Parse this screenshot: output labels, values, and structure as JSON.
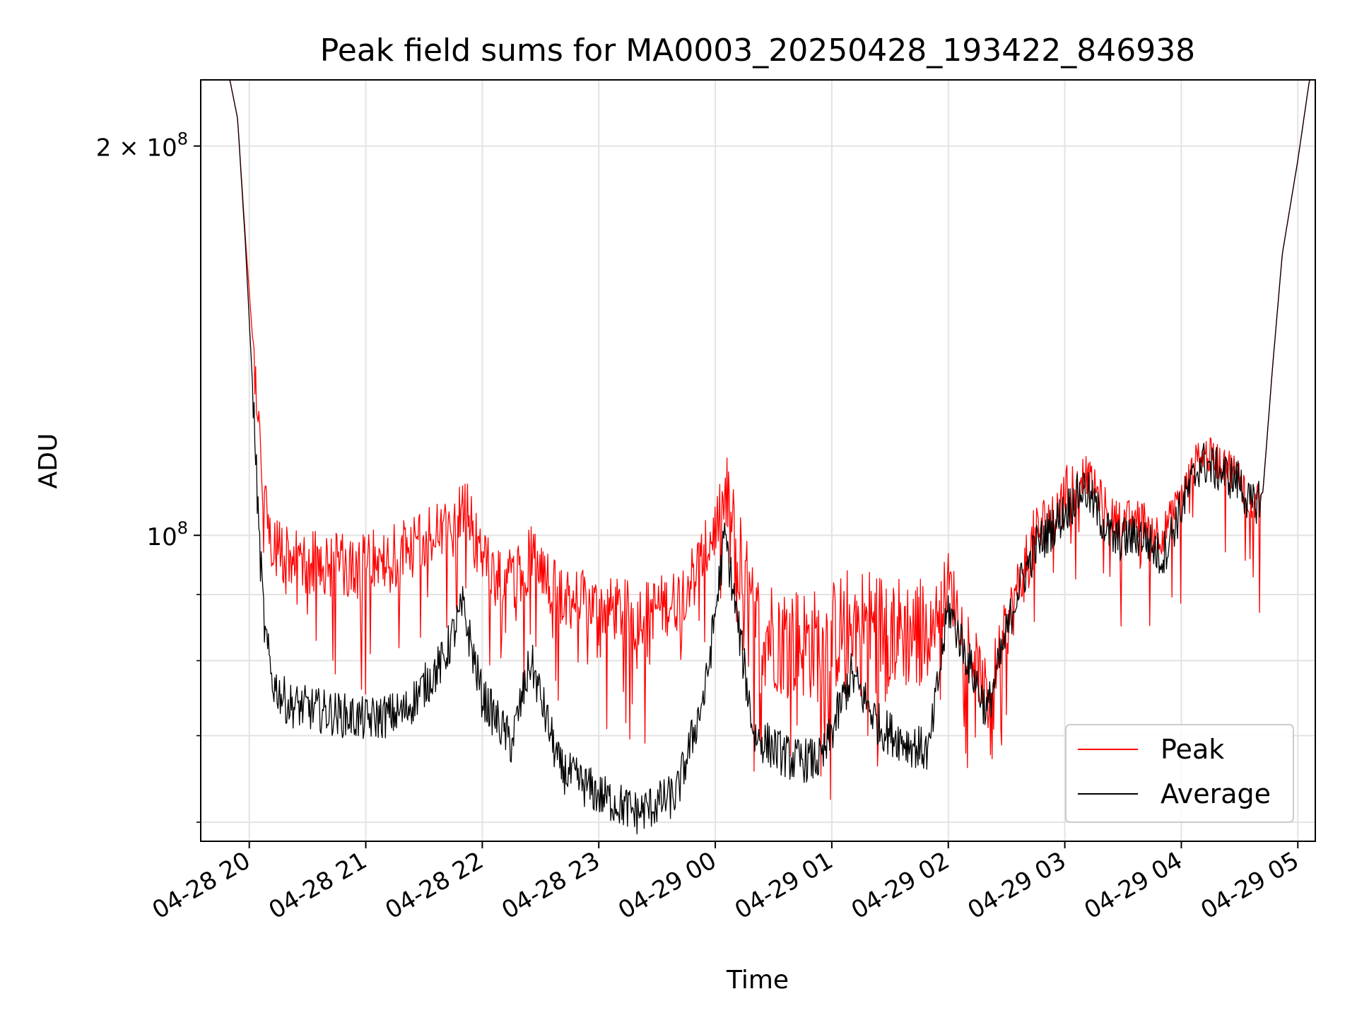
{
  "chart_data": {
    "type": "line",
    "title": "Peak field sums for MA0003_20250428_193422_846938",
    "xlabel": "Time",
    "ylabel": "ADU",
    "x_range": [
      "2025-04-28 19:35",
      "2025-04-29 05:09"
    ],
    "x_ticks": [
      "04-28 20",
      "04-28 21",
      "04-28 22",
      "04-28 23",
      "04-29 00",
      "04-29 01",
      "04-29 02",
      "04-29 03",
      "04-29 04",
      "04-29 05"
    ],
    "y_scale": "log",
    "ylim": [
      58000000,
      225000000
    ],
    "y_ticks": [
      {
        "value": 100000000,
        "label": "10^8"
      },
      {
        "value": 200000000,
        "label": "2 × 10^8"
      }
    ],
    "y_minor_ticks": [
      60000000,
      70000000,
      80000000,
      90000000
    ],
    "grid": true,
    "legend_position": "lower-right",
    "series": [
      {
        "name": "Peak",
        "color": "#ff0000",
        "times": [
          "2025-04-28 19:35",
          "2025-04-28 19:50",
          "2025-04-28 19:54",
          "2025-04-28 19:58",
          "2025-04-28 20:02",
          "2025-04-28 20:05",
          "2025-04-28 20:08",
          "2025-04-28 20:12",
          "2025-04-28 20:20",
          "2025-04-28 20:40",
          "2025-04-28 21:00",
          "2025-04-28 21:20",
          "2025-04-28 21:40",
          "2025-04-28 21:50",
          "2025-04-28 22:00",
          "2025-04-28 22:15",
          "2025-04-28 22:25",
          "2025-04-28 22:40",
          "2025-04-28 23:00",
          "2025-04-28 23:20",
          "2025-04-28 23:40",
          "2025-04-28 23:55",
          "2025-04-29 00:05",
          "2025-04-29 00:20",
          "2025-04-29 00:40",
          "2025-04-29 00:55",
          "2025-04-29 01:10",
          "2025-04-29 01:25",
          "2025-04-29 01:40",
          "2025-04-29 01:50",
          "2025-04-29 02:00",
          "2025-04-29 02:20",
          "2025-04-29 02:35",
          "2025-04-29 02:45",
          "2025-04-29 02:55",
          "2025-04-29 03:10",
          "2025-04-29 03:25",
          "2025-04-29 03:40",
          "2025-04-29 03:50",
          "2025-04-29 04:00",
          "2025-04-29 04:10",
          "2025-04-29 04:25",
          "2025-04-29 04:30",
          "2025-04-29 04:36",
          "2025-04-29 04:42",
          "2025-04-29 04:47",
          "2025-04-29 04:52",
          "2025-04-29 05:00",
          "2025-04-29 05:06",
          "2025-04-29 05:09"
        ],
        "values": [
          225000000,
          225000000,
          210000000,
          170000000,
          140000000,
          118000000,
          104000000,
          99000000,
          96000000,
          95000000,
          95000000,
          97000000,
          101000000,
          106000000,
          96000000,
          92000000,
          96000000,
          90000000,
          88000000,
          87000000,
          89000000,
          97000000,
          106000000,
          85000000,
          83000000,
          82000000,
          86000000,
          85000000,
          84000000,
          84000000,
          92000000,
          75000000,
          90000000,
          100000000,
          104000000,
          112000000,
          103000000,
          103000000,
          100000000,
          107000000,
          116000000,
          113000000,
          111000000,
          106000000,
          108000000,
          135000000,
          165000000,
          195000000,
          225000000,
          225000000
        ]
      },
      {
        "name": "Average",
        "color": "#000000",
        "times": [
          "2025-04-28 19:35",
          "2025-04-28 19:50",
          "2025-04-28 19:54",
          "2025-04-28 19:58",
          "2025-04-28 20:02",
          "2025-04-28 20:05",
          "2025-04-28 20:08",
          "2025-04-28 20:12",
          "2025-04-28 20:20",
          "2025-04-28 20:40",
          "2025-04-28 21:00",
          "2025-04-28 21:20",
          "2025-04-28 21:40",
          "2025-04-28 21:50",
          "2025-04-28 22:00",
          "2025-04-28 22:15",
          "2025-04-28 22:25",
          "2025-04-28 22:40",
          "2025-04-28 23:00",
          "2025-04-28 23:20",
          "2025-04-28 23:40",
          "2025-04-28 23:55",
          "2025-04-29 00:05",
          "2025-04-29 00:20",
          "2025-04-29 00:40",
          "2025-04-29 00:55",
          "2025-04-29 01:10",
          "2025-04-29 01:25",
          "2025-04-29 01:40",
          "2025-04-29 01:50",
          "2025-04-29 02:00",
          "2025-04-29 02:20",
          "2025-04-29 02:35",
          "2025-04-29 02:45",
          "2025-04-29 02:55",
          "2025-04-29 03:10",
          "2025-04-29 03:25",
          "2025-04-29 03:40",
          "2025-04-29 03:50",
          "2025-04-29 04:00",
          "2025-04-29 04:10",
          "2025-04-29 04:25",
          "2025-04-29 04:30",
          "2025-04-29 04:36",
          "2025-04-29 04:42",
          "2025-04-29 04:47",
          "2025-04-29 04:52",
          "2025-04-29 05:00",
          "2025-04-29 05:06",
          "2025-04-29 05:09"
        ],
        "values": [
          225000000,
          225000000,
          210000000,
          168000000,
          128000000,
          100000000,
          84000000,
          77000000,
          74000000,
          73000000,
          72000000,
          73000000,
          80000000,
          88000000,
          75000000,
          69000000,
          80000000,
          66000000,
          63000000,
          61000000,
          63000000,
          76000000,
          100000000,
          70000000,
          67000000,
          67000000,
          78000000,
          71000000,
          69000000,
          68000000,
          88000000,
          73000000,
          90000000,
          98000000,
          102000000,
          109000000,
          99000000,
          100000000,
          96000000,
          105000000,
          114000000,
          111000000,
          110000000,
          105000000,
          108000000,
          135000000,
          165000000,
          195000000,
          225000000,
          225000000
        ]
      }
    ]
  }
}
